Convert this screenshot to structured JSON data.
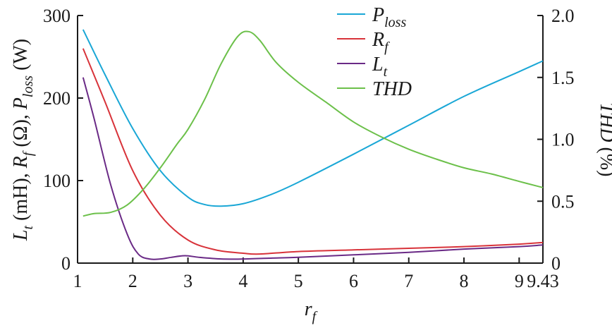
{
  "chart_data": {
    "type": "line",
    "xlabel": "r_f",
    "ylabel_left": "L_t (mH), R_f (Ω), P_loss (W)",
    "ylabel_right": "THD (%)",
    "xlim": [
      1,
      9.43
    ],
    "ylim_left": [
      0,
      300
    ],
    "ylim_right": [
      0,
      2.0
    ],
    "x_ticks": [
      1,
      2,
      3,
      4,
      5,
      6,
      7,
      8,
      9,
      9.43
    ],
    "x_tick_labels": [
      "1",
      "2",
      "3",
      "4",
      "5",
      "6",
      "7",
      "8",
      "9",
      "9.43"
    ],
    "y_left_ticks": [
      0,
      100,
      200,
      300
    ],
    "y_left_tick_labels": [
      "0",
      "100",
      "200",
      "300"
    ],
    "y_right_ticks": [
      0,
      0.5,
      1.0,
      1.5,
      2.0
    ],
    "y_right_tick_labels": [
      "0",
      "0.5",
      "1.0",
      "1.5",
      "2.0"
    ],
    "grid": false,
    "legend_position": "top-center",
    "series": [
      {
        "name": "P_loss",
        "legend_main": "P",
        "legend_sub": "loss",
        "axis": "left",
        "color": "#1aa7d6",
        "x": [
          1.1,
          1.5,
          2.0,
          2.5,
          3.0,
          3.3,
          3.6,
          4.0,
          4.5,
          5.0,
          6.0,
          7.0,
          8.0,
          9.0,
          9.43
        ],
        "y": [
          283,
          228,
          163,
          112,
          80,
          71,
          69,
          72,
          83,
          98,
          132,
          167,
          202,
          232,
          245
        ]
      },
      {
        "name": "R_f",
        "legend_main": "R",
        "legend_sub": "f",
        "axis": "left",
        "color": "#d8333a",
        "x": [
          1.1,
          1.5,
          2.0,
          2.5,
          3.0,
          3.5,
          4.0,
          4.3,
          5.0,
          6.0,
          7.0,
          8.0,
          9.0,
          9.43
        ],
        "y": [
          260,
          195,
          112,
          58,
          28,
          16,
          12,
          11,
          14,
          16,
          18,
          20,
          23,
          25
        ]
      },
      {
        "name": "L_t",
        "legend_main": "L",
        "legend_sub": "t",
        "axis": "left",
        "color": "#6a2a86",
        "x": [
          1.1,
          1.3,
          1.6,
          1.9,
          2.1,
          2.3,
          2.5,
          2.7,
          2.95,
          3.2,
          3.6,
          4.0,
          4.5,
          5.0,
          6.0,
          7.0,
          8.0,
          9.0,
          9.43
        ],
        "y": [
          225,
          175,
          95,
          35,
          11,
          5,
          5,
          7,
          9,
          7,
          5,
          5,
          6,
          7,
          10,
          13,
          17,
          20,
          22
        ]
      },
      {
        "name": "THD",
        "legend_main": "THD",
        "legend_sub": "",
        "axis": "right",
        "color": "#6cc04a",
        "x": [
          1.1,
          1.3,
          1.6,
          1.9,
          2.2,
          2.5,
          2.8,
          3.0,
          3.3,
          3.6,
          3.9,
          4.1,
          4.3,
          4.6,
          5.0,
          5.5,
          6.0,
          6.5,
          7.0,
          7.5,
          8.0,
          8.5,
          9.0,
          9.43
        ],
        "y": [
          0.38,
          0.4,
          0.41,
          0.47,
          0.6,
          0.77,
          0.96,
          1.08,
          1.32,
          1.61,
          1.83,
          1.87,
          1.8,
          1.62,
          1.46,
          1.3,
          1.14,
          1.02,
          0.92,
          0.84,
          0.77,
          0.72,
          0.66,
          0.61
        ]
      }
    ]
  }
}
